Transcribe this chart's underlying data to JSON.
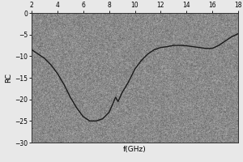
{
  "x": [
    2,
    2.5,
    3.0,
    3.5,
    4.0,
    4.5,
    5.0,
    5.5,
    6.0,
    6.5,
    7.0,
    7.5,
    8.0,
    8.3,
    8.5,
    8.7,
    9.0,
    9.5,
    10.0,
    10.5,
    11.0,
    11.5,
    12.0,
    12.5,
    13.0,
    13.5,
    14.0,
    14.5,
    15.0,
    15.5,
    16.0,
    16.5,
    17.0,
    17.5,
    18.0
  ],
  "y": [
    -8.5,
    -9.5,
    -10.5,
    -12.0,
    -14.0,
    -16.5,
    -19.5,
    -22.0,
    -24.0,
    -25.0,
    -25.0,
    -24.5,
    -23.0,
    -21.0,
    -19.5,
    -20.5,
    -18.5,
    -16.0,
    -13.0,
    -11.0,
    -9.5,
    -8.5,
    -8.0,
    -7.8,
    -7.5,
    -7.5,
    -7.6,
    -7.8,
    -8.0,
    -8.2,
    -8.2,
    -7.5,
    -6.5,
    -5.5,
    -4.8
  ],
  "xlabel": "f(GHz)",
  "ylabel": "RC",
  "xlim": [
    2,
    18
  ],
  "ylim": [
    -30,
    0
  ],
  "xticks": [
    2,
    4,
    6,
    8,
    10,
    12,
    14,
    16,
    18
  ],
  "yticks": [
    0,
    -5,
    -10,
    -15,
    -20,
    -25,
    -30
  ],
  "line_color": "#1a1a1a",
  "line_width": 1.0,
  "noise_mean": 0.72,
  "noise_std": 0.07,
  "noise_vmin": 0.45,
  "noise_vmax": 0.95,
  "fig_bg_color": "#e8e8e8",
  "ax_bg_color": "#aaaaaa"
}
